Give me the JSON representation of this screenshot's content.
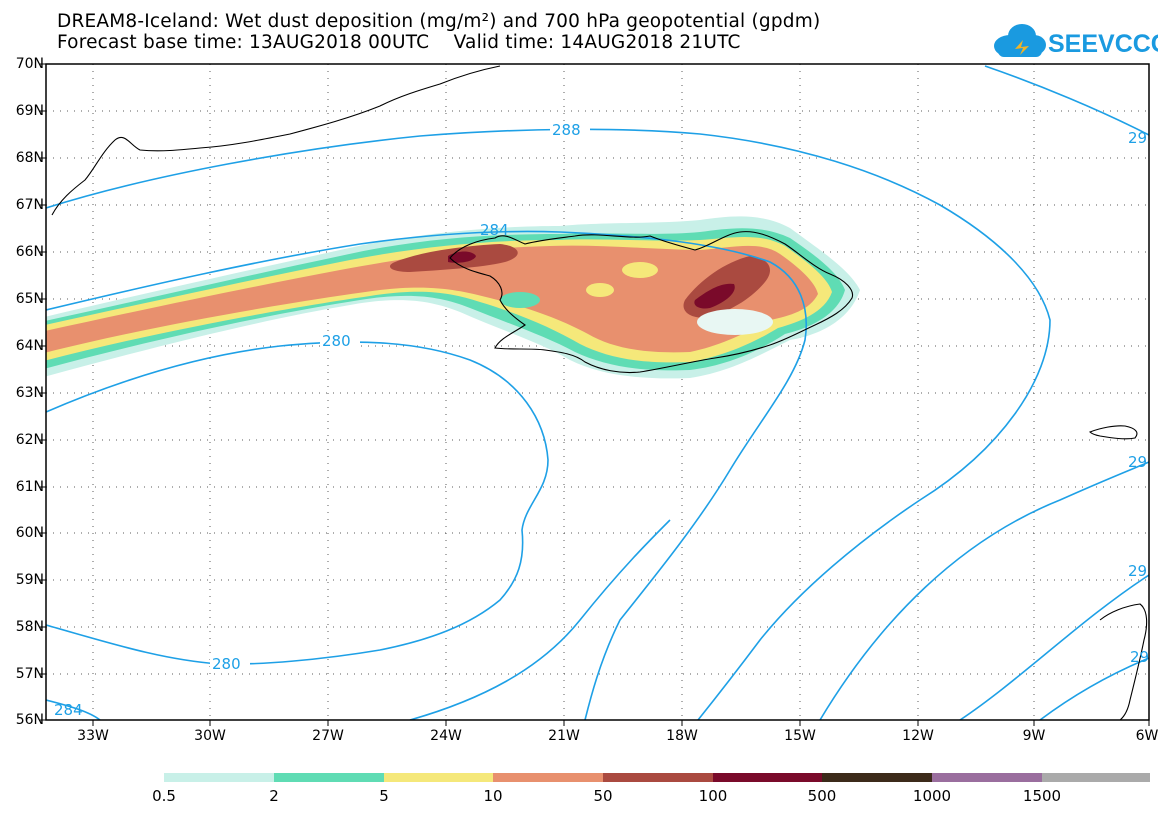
{
  "header": {
    "title_line1": "DREAM8-Iceland: Wet dust deposition (mg/m²) and 700 hPa geopotential (gpdm)",
    "title_line2": "Forecast base time: 13AUG2018 00UTC    Valid time: 14AUG2018 21UTC",
    "logo_text": "SEEVCCC"
  },
  "lat_labels": [
    "70N",
    "69N",
    "68N",
    "67N",
    "66N",
    "65N",
    "64N",
    "63N",
    "62N",
    "61N",
    "60N",
    "59N",
    "58N",
    "57N",
    "56N"
  ],
  "lon_labels": [
    "33W",
    "30W",
    "27W",
    "24W",
    "21W",
    "18W",
    "15W",
    "12W",
    "9W",
    "6W"
  ],
  "contour_labels": {
    "c288": "288",
    "c284_top": "284",
    "c280_mid": "280",
    "c280_low": "280",
    "c284_bottom": "284",
    "c29_a": "29",
    "c29_b": "29",
    "c29_c": "29",
    "c29_d": "29"
  },
  "colorbar": {
    "labels": [
      "0.5",
      "2",
      "5",
      "10",
      "50",
      "100",
      "500",
      "1000",
      "1500"
    ],
    "colors": [
      "#c8f0e8",
      "#5fdcb4",
      "#f5e87a",
      "#e8906e",
      "#aa4a40",
      "#7a0a2a",
      "#3c2a1a",
      "#9a6e9e",
      "#aaaaaa"
    ]
  },
  "colors": {
    "contour": "#1ea0e6",
    "coast": "#000000"
  }
}
